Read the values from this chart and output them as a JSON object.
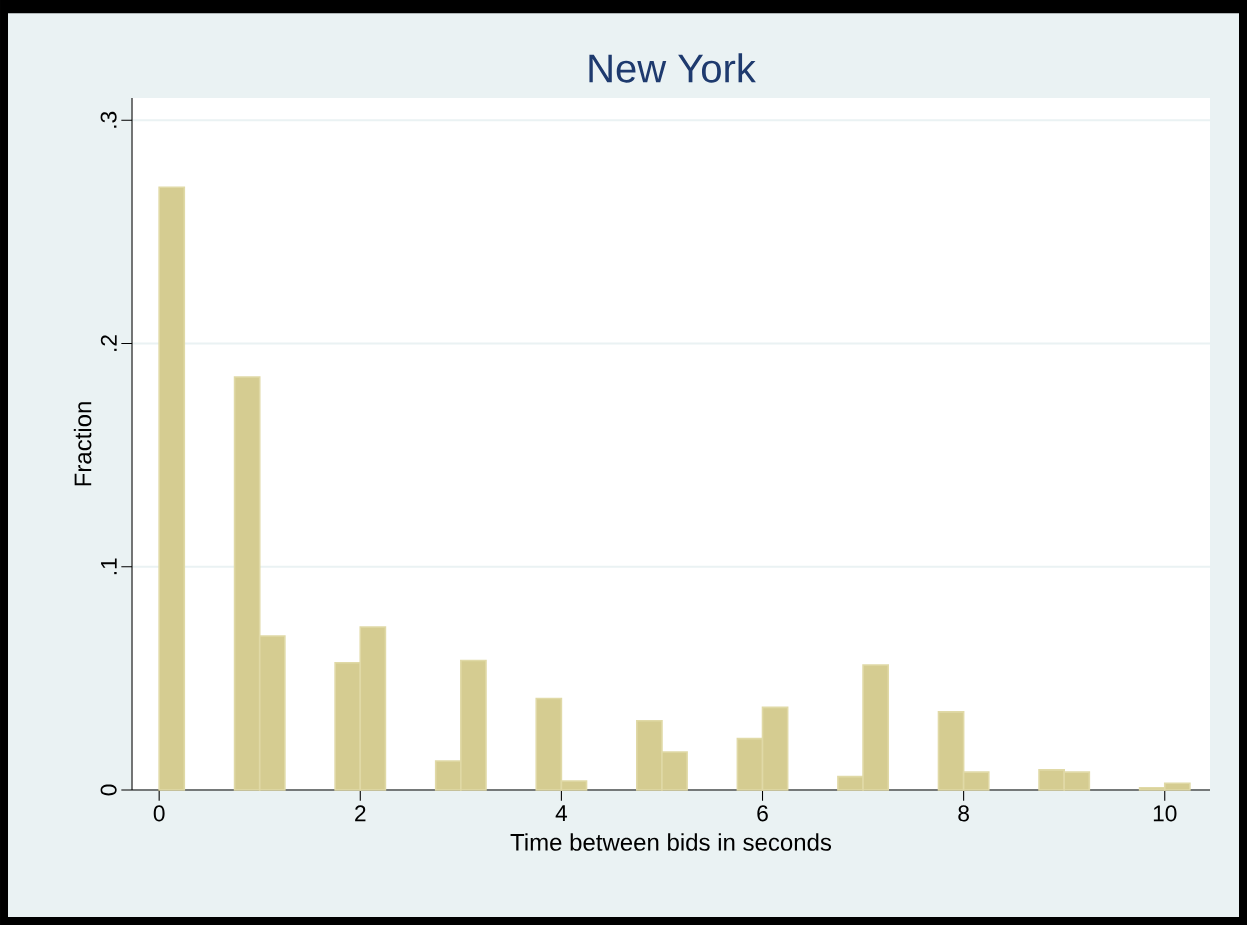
{
  "chart_data": {
    "type": "histogram",
    "title": "New York",
    "xlabel": "Time between bids in seconds",
    "ylabel": "Fraction",
    "bins": [
      0,
      0.25,
      0.5,
      0.75,
      1,
      1.25,
      1.5,
      1.75,
      2,
      2.25,
      2.5,
      2.75,
      3,
      3.25,
      3.5,
      3.75,
      4,
      4.25,
      4.5,
      4.75,
      5,
      5.25,
      5.5,
      5.75,
      6,
      6.25,
      6.5,
      6.75,
      7,
      7.25,
      7.5,
      7.75,
      8,
      8.25,
      8.5,
      8.75,
      9,
      9.25,
      9.5,
      9.75,
      10,
      10.25
    ],
    "values": [
      0.27,
      0,
      0,
      0.185,
      0.069,
      0,
      0,
      0.057,
      0.073,
      0,
      0,
      0.013,
      0.058,
      0,
      0,
      0.041,
      0.004,
      0,
      0,
      0.031,
      0.017,
      0,
      0,
      0.023,
      0.037,
      0,
      0,
      0.006,
      0.056,
      0,
      0,
      0.035,
      0.008,
      0,
      0,
      0.009,
      0.008,
      0,
      0,
      0.001,
      0.003
    ],
    "color": "#d5cc91",
    "xlim": [
      -0.27,
      10.45
    ],
    "ylim": [
      0,
      0.31
    ],
    "xticks": [
      0,
      2,
      4,
      6,
      8,
      10
    ],
    "yticks": [
      {
        "value": 0,
        "label": "0"
      },
      {
        "value": 0.1,
        "label": ".1"
      },
      {
        "value": 0.2,
        "label": ".2"
      },
      {
        "value": 0.3,
        "label": ".3"
      }
    ],
    "grid": "y"
  }
}
